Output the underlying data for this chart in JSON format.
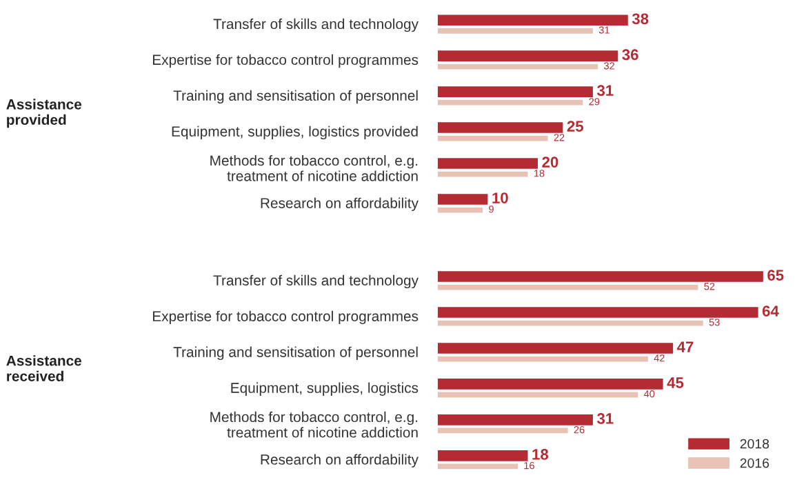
{
  "chart_data": [
    {
      "type": "bar",
      "orientation": "horizontal",
      "ylabel": "Assistance\nprovided",
      "categories": [
        "Transfer of skills and technology",
        "Expertise for tobacco control programmes",
        "Training and sensitisation of personnel",
        "Equipment, supplies, logistics provided",
        "Methods for tobacco control, e.g.\ntreatment of nicotine addiction",
        "Research on affordability"
      ],
      "series": [
        {
          "color": "#b52b33",
          "values": [
            38,
            36,
            31,
            25,
            20,
            10
          ]
        },
        {
          "color": "#e8c2b4",
          "values": [
            31,
            32,
            29,
            22,
            18,
            9
          ]
        }
      ],
      "tick_labels": "y",
      "data_labels": true,
      "grid": false
    },
    {
      "type": "bar",
      "orientation": "horizontal",
      "ylabel": "Assistance\nreceived",
      "categories": [
        "Transfer of skills and technology",
        "Expertise for tobacco control programmes",
        "Training and sensitisation of personnel",
        "Equipment, supplies, logistics",
        "Methods for tobacco control, e.g.\ntreatment of nicotine addiction",
        "Research on affordability"
      ],
      "series": [
        {
          "name": "2018",
          "color": "#b52b33",
          "values": [
            65,
            64,
            47,
            45,
            31,
            18
          ]
        },
        {
          "name": "2016",
          "color": "#e8c2b4",
          "values": [
            52,
            53,
            42,
            40,
            26,
            16
          ]
        }
      ],
      "tick_labels": "y",
      "data_labels": true,
      "grid": false,
      "legend": "bottom right"
    }
  ]
}
